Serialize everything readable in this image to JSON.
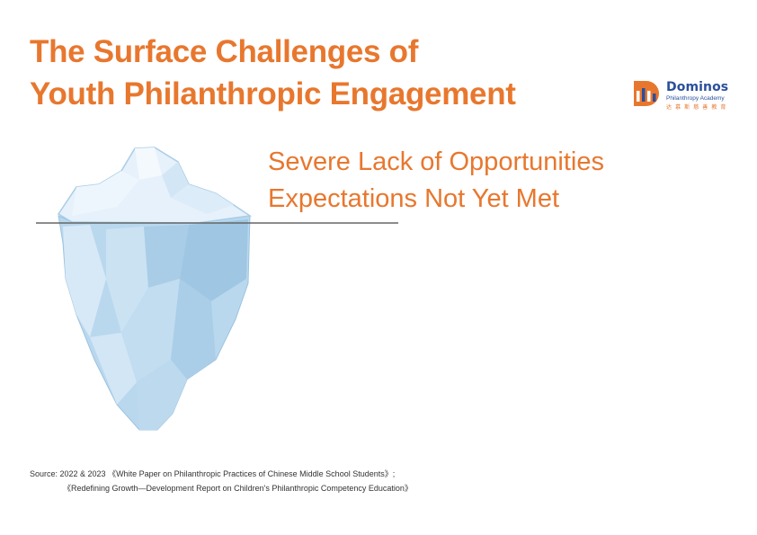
{
  "title": {
    "line1": "The Surface Challenges of",
    "line2": "Youth Philanthropic Engagement"
  },
  "logo": {
    "name": "Dominos",
    "subtitle": "Philanthropy Academy",
    "chinese": "达 慕 斯 慈 善 教 育"
  },
  "callouts": [
    "Severe Lack of Opportunities",
    "Expectations Not Yet Met"
  ],
  "source": {
    "line1": "Source: 2022 & 2023 《White Paper on Philanthropic Practices of Chinese Middle School Students》;",
    "line2": "《Redefining Growth—Development Report on Children's Philanthropic Competency Education》"
  },
  "colors": {
    "accent": "#e8772e",
    "brand_blue": "#2a4f9c",
    "ice_light": "#e6f1fb",
    "ice_dark": "#a8cde6",
    "waterline": "#666666"
  },
  "icons": {
    "logo_mark": "dominos-logo-icon",
    "iceberg": "iceberg-illustration"
  }
}
